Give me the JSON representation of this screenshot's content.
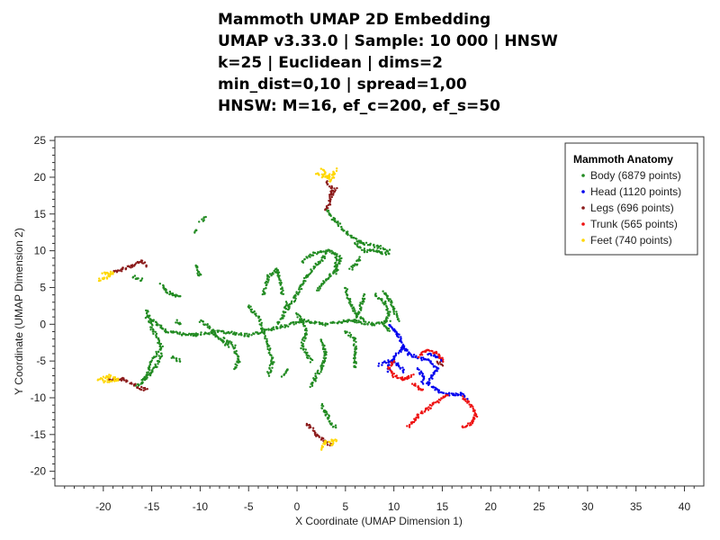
{
  "title_lines": [
    "Mammoth UMAP 2D Embedding",
    "UMAP v3.33.0 | Sample: 10 000 | HNSW",
    "k=25 | Euclidean | dims=2",
    "min_dist=0,10 | spread=1,00",
    "HNSW: M=16, ef_c=200, ef_s=50"
  ],
  "colors": {
    "body": "#228B22",
    "head": "#0000EE",
    "legs": "#8B1A1A",
    "trunk": "#EE1111",
    "feet": "#FFD700"
  },
  "chart_data": {
    "type": "scatter",
    "title": "Mammoth UMAP 2D Embedding",
    "xlabel": "X Coordinate (UMAP Dimension 1)",
    "ylabel": "Y Coordinate (UMAP Dimension 2)",
    "xlim": [
      -25,
      42
    ],
    "ylim": [
      -22,
      25.5
    ],
    "xticks": [
      -20,
      -15,
      -10,
      -5,
      0,
      5,
      10,
      15,
      20,
      25,
      30,
      35,
      40
    ],
    "yticks": [
      -20,
      -15,
      -10,
      -5,
      0,
      5,
      10,
      15,
      20,
      25
    ],
    "grid": false,
    "legend": {
      "title": "Mammoth Anatomy",
      "placement": "top-right",
      "entries": [
        "Body (6879 points)",
        "Head (1120 points)",
        "Legs (696 points)",
        "Trunk (565 points)",
        "Feet (740 points)"
      ]
    },
    "series": [
      {
        "name": "Body",
        "color": "#228B22",
        "paths": [
          [
            [
              -15.5,
              1.0
            ],
            [
              -13.5,
              -1.0
            ],
            [
              -11.0,
              -1.5
            ],
            [
              -8.0,
              -1.0
            ],
            [
              -5.0,
              -1.5
            ],
            [
              -2.0,
              -0.5
            ],
            [
              0.5,
              0.5
            ],
            [
              3.0,
              0.0
            ],
            [
              5.5,
              0.5
            ],
            [
              8.0,
              0.0
            ],
            [
              9.5,
              0.5
            ]
          ],
          [
            [
              -15.5,
              2.0
            ],
            [
              -15.0,
              -0.5
            ],
            [
              -14.0,
              -3.0
            ],
            [
              -15.0,
              -5.0
            ],
            [
              -15.5,
              -7.0
            ],
            [
              -16.5,
              -8.5
            ]
          ],
          [
            [
              -13.0,
              -4.5
            ],
            [
              -12.0,
              -5.0
            ]
          ],
          [
            [
              -14.0,
              5.5
            ],
            [
              -13.5,
              4.5
            ],
            [
              -12.8,
              4.0
            ],
            [
              -12.0,
              3.8
            ]
          ],
          [
            [
              -17.0,
              6.5
            ],
            [
              -16.0,
              6.0
            ]
          ],
          [
            [
              -10.0,
              0.5
            ],
            [
              -9.0,
              -0.5
            ],
            [
              -8.0,
              -2.0
            ],
            [
              -7.0,
              -3.0
            ]
          ],
          [
            [
              -12.5,
              0.5
            ],
            [
              -12.0,
              0.0
            ]
          ],
          [
            [
              -5.0,
              2.5
            ],
            [
              -4.0,
              1.0
            ],
            [
              -3.5,
              -1.0
            ],
            [
              -3.0,
              -3.0
            ],
            [
              -2.5,
              -5.0
            ],
            [
              -3.0,
              -7.0
            ]
          ],
          [
            [
              -7.5,
              -2.0
            ],
            [
              -6.5,
              -3.0
            ],
            [
              -6.0,
              -5.0
            ],
            [
              -6.5,
              -6.0
            ]
          ],
          [
            [
              -3.5,
              4.0
            ],
            [
              -3.0,
              6.5
            ],
            [
              -2.0,
              7.5
            ],
            [
              -1.5,
              4.0
            ]
          ],
          [
            [
              -1.0,
              2.0
            ],
            [
              0.0,
              4.0
            ],
            [
              1.0,
              6.5
            ],
            [
              2.0,
              8.0
            ],
            [
              3.0,
              9.5
            ]
          ],
          [
            [
              0.0,
              1.5
            ],
            [
              1.0,
              -1.0
            ],
            [
              0.5,
              -3.0
            ],
            [
              1.5,
              -5.0
            ]
          ],
          [
            [
              2.5,
              -2.0
            ],
            [
              3.0,
              -4.0
            ],
            [
              2.5,
              -6.0
            ],
            [
              2.0,
              -7.0
            ],
            [
              1.5,
              -8.5
            ]
          ],
          [
            [
              2.0,
              4.5
            ],
            [
              3.0,
              6.0
            ],
            [
              4.0,
              7.5
            ],
            [
              4.0,
              9.0
            ]
          ],
          [
            [
              0.5,
              8.5
            ],
            [
              1.5,
              9.5
            ],
            [
              2.5,
              10.0
            ],
            [
              3.5,
              10.0
            ],
            [
              4.5,
              9.0
            ]
          ],
          [
            [
              4.5,
              9.0
            ],
            [
              4.0,
              7.0
            ]
          ],
          [
            [
              5.0,
              5.0
            ],
            [
              5.5,
              3.0
            ],
            [
              6.0,
              1.5
            ],
            [
              7.0,
              0.5
            ]
          ],
          [
            [
              7.0,
              4.0
            ],
            [
              6.5,
              2.0
            ],
            [
              6.0,
              0.5
            ]
          ],
          [
            [
              5.0,
              -1.0
            ],
            [
              6.0,
              -2.0
            ],
            [
              6.0,
              -4.0
            ],
            [
              6.0,
              -6.0
            ]
          ],
          [
            [
              8.0,
              4.0
            ],
            [
              9.0,
              3.0
            ],
            [
              9.5,
              1.5
            ],
            [
              9.0,
              0.0
            ],
            [
              9.5,
              -1.0
            ]
          ],
          [
            [
              3.0,
              15.5
            ],
            [
              4.0,
              14.0
            ],
            [
              5.0,
              12.5
            ],
            [
              6.0,
              11.5
            ],
            [
              7.0,
              11.0
            ],
            [
              8.5,
              10.5
            ],
            [
              9.5,
              10.0
            ]
          ],
          [
            [
              6.0,
              11.0
            ],
            [
              7.0,
              10.0
            ],
            [
              8.0,
              10.0
            ],
            [
              9.5,
              9.5
            ]
          ],
          [
            [
              6.5,
              9.0
            ],
            [
              6.0,
              8.0
            ],
            [
              5.5,
              7.5
            ]
          ],
          [
            [
              9.0,
              4.5
            ],
            [
              9.5,
              3.5
            ],
            [
              10.0,
              2.0
            ],
            [
              10.5,
              0.5
            ]
          ],
          [
            [
              -1.0,
              -6.0
            ],
            [
              -1.5,
              -7.0
            ]
          ],
          [
            [
              2.5,
              -11.0
            ],
            [
              3.0,
              -12.0
            ],
            [
              3.5,
              -13.5
            ],
            [
              4.0,
              -14.0
            ]
          ],
          [
            [
              -16.0,
              -8.0
            ],
            [
              -15.0,
              -6.5
            ],
            [
              -14.5,
              -5.5
            ],
            [
              -14.0,
              -4.0
            ]
          ],
          [
            [
              -9.5,
              14.5
            ],
            [
              -10.0,
              14.0
            ]
          ],
          [
            [
              -10.5,
              12.5
            ],
            [
              -10.5,
              13.0
            ]
          ],
          [
            [
              -10.0,
              6.5
            ],
            [
              -10.5,
              8.0
            ]
          ],
          [
            [
              -2.0,
              0.0
            ],
            [
              -1.5,
              1.0
            ],
            [
              -1.0,
              3.0
            ]
          ]
        ]
      },
      {
        "name": "Head",
        "color": "#0000EE",
        "paths": [
          [
            [
              9.5,
              0.0
            ],
            [
              10.5,
              -1.5
            ],
            [
              11.0,
              -3.0
            ],
            [
              11.5,
              -4.0
            ],
            [
              12.5,
              -4.5
            ],
            [
              13.5,
              -5.0
            ],
            [
              14.5,
              -6.0
            ],
            [
              14.0,
              -7.0
            ],
            [
              13.5,
              -8.0
            ],
            [
              14.5,
              -9.0
            ],
            [
              15.5,
              -9.5
            ],
            [
              17.0,
              -9.5
            ],
            [
              17.5,
              -10.0
            ]
          ],
          [
            [
              11.0,
              -3.0
            ],
            [
              10.0,
              -4.5
            ],
            [
              9.5,
              -5.5
            ],
            [
              9.5,
              -6.5
            ]
          ],
          [
            [
              8.5,
              -5.5
            ],
            [
              9.5,
              -5.0
            ],
            [
              10.5,
              -5.5
            ],
            [
              11.0,
              -6.5
            ]
          ],
          [
            [
              12.5,
              -6.0
            ],
            [
              13.0,
              -7.0
            ],
            [
              13.0,
              -8.0
            ]
          ],
          [
            [
              13.5,
              -4.0
            ],
            [
              14.5,
              -4.5
            ],
            [
              15.0,
              -5.0
            ]
          ]
        ]
      },
      {
        "name": "Legs",
        "color": "#8B1A1A",
        "paths": [
          [
            [
              3.0,
              19.5
            ],
            [
              3.5,
              18.5
            ],
            [
              3.5,
              17.0
            ],
            [
              3.0,
              15.5
            ]
          ],
          [
            [
              4.0,
              18.5
            ],
            [
              3.5,
              17.5
            ]
          ],
          [
            [
              -19.0,
              7.0
            ],
            [
              -18.0,
              7.5
            ],
            [
              -17.0,
              8.0
            ],
            [
              -16.0,
              8.5
            ],
            [
              -15.5,
              8.0
            ]
          ],
          [
            [
              -19.5,
              -7.5
            ],
            [
              -18.0,
              -7.5
            ],
            [
              -16.5,
              -8.5
            ],
            [
              -15.5,
              -9.0
            ]
          ],
          [
            [
              1.0,
              -13.5
            ],
            [
              2.0,
              -15.0
            ],
            [
              3.0,
              -16.0
            ],
            [
              3.5,
              -16.5
            ]
          ],
          [
            [
              14.5,
              -5.0
            ],
            [
              15.0,
              -5.5
            ]
          ]
        ]
      },
      {
        "name": "Trunk",
        "color": "#EE1111",
        "paths": [
          [
            [
              17.0,
              -10.0
            ],
            [
              18.0,
              -11.0
            ],
            [
              18.5,
              -12.5
            ],
            [
              18.0,
              -13.5
            ],
            [
              17.0,
              -14.0
            ]
          ],
          [
            [
              15.5,
              -9.5
            ],
            [
              14.5,
              -10.5
            ],
            [
              13.5,
              -11.5
            ],
            [
              12.5,
              -12.5
            ],
            [
              11.5,
              -14.0
            ]
          ],
          [
            [
              10.0,
              -5.0
            ],
            [
              9.5,
              -6.0
            ],
            [
              10.0,
              -7.0
            ],
            [
              11.0,
              -7.5
            ],
            [
              12.0,
              -7.0
            ]
          ],
          [
            [
              12.5,
              -4.5
            ],
            [
              13.5,
              -3.5
            ],
            [
              14.5,
              -4.0
            ],
            [
              15.0,
              -5.0
            ]
          ],
          [
            [
              12.0,
              -8.0
            ],
            [
              13.0,
              -9.0
            ]
          ]
        ]
      },
      {
        "name": "Feet",
        "color": "#FFD700",
        "paths": [
          [
            [
              2.0,
              20.5
            ],
            [
              3.0,
              20.0
            ],
            [
              4.0,
              20.5
            ]
          ],
          [
            [
              2.5,
              21.0
            ],
            [
              3.5,
              19.5
            ],
            [
              4.0,
              21.0
            ]
          ],
          [
            [
              -20.5,
              6.0
            ],
            [
              -19.5,
              6.5
            ],
            [
              -19.0,
              7.0
            ],
            [
              -20.0,
              6.8
            ]
          ],
          [
            [
              -20.5,
              -7.5
            ],
            [
              -19.5,
              -7.0
            ],
            [
              -18.5,
              -7.5
            ],
            [
              -20.0,
              -7.8
            ]
          ],
          [
            [
              2.5,
              -17.0
            ],
            [
              3.0,
              -16.0
            ],
            [
              4.0,
              -15.8
            ],
            [
              3.5,
              -16.5
            ]
          ]
        ]
      }
    ]
  }
}
